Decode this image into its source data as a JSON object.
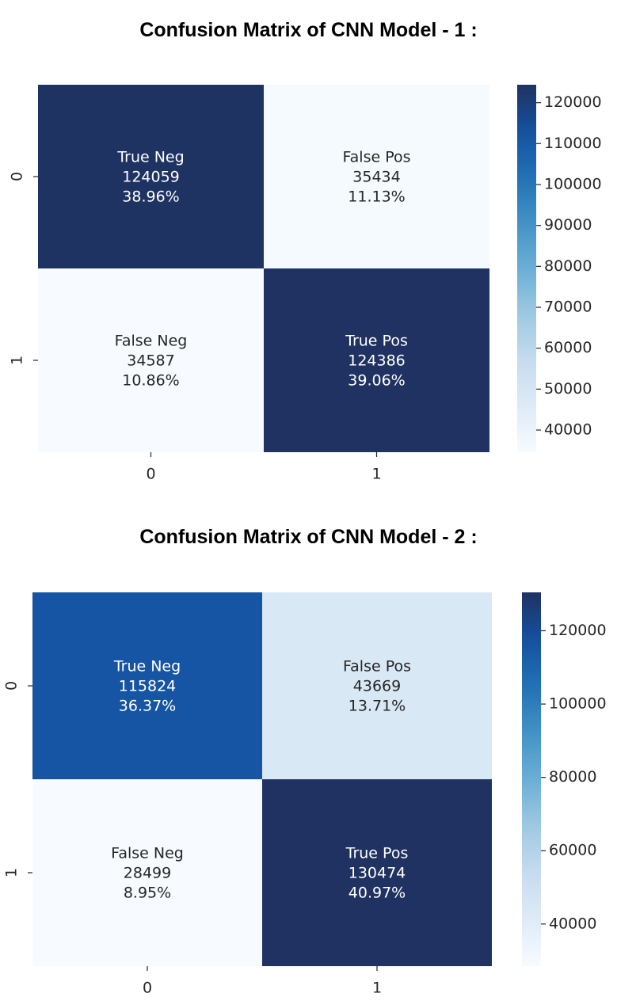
{
  "chart_data": [
    {
      "type": "heatmap",
      "title": "Confusion Matrix of CNN Model - 1 :",
      "row_labels": [
        "0",
        "1"
      ],
      "col_labels": [
        "0",
        "1"
      ],
      "cells": [
        [
          {
            "label": "True Neg",
            "count": "124059",
            "percent": "38.96%",
            "value": 124059
          },
          {
            "label": "False Pos",
            "count": "35434",
            "percent": "11.13%",
            "value": 35434
          }
        ],
        [
          {
            "label": "False Neg",
            "count": "34587",
            "percent": "10.86%",
            "value": 34587
          },
          {
            "label": "True Pos",
            "count": "124386",
            "percent": "39.06%",
            "value": 124386
          }
        ]
      ],
      "colorbar": {
        "min": 34587,
        "max": 124386,
        "ticks": [
          120000,
          110000,
          100000,
          90000,
          80000,
          70000,
          60000,
          50000,
          40000
        ]
      },
      "colormap": "Blues"
    },
    {
      "type": "heatmap",
      "title": "Confusion Matrix of CNN Model - 2 :",
      "row_labels": [
        "0",
        "1"
      ],
      "col_labels": [
        "0",
        "1"
      ],
      "cells": [
        [
          {
            "label": "True Neg",
            "count": "115824",
            "percent": "36.37%",
            "value": 115824
          },
          {
            "label": "False Pos",
            "count": "43669",
            "percent": "13.71%",
            "value": 43669
          }
        ],
        [
          {
            "label": "False Neg",
            "count": "28499",
            "percent": "8.95%",
            "value": 28499
          },
          {
            "label": "True Pos",
            "count": "130474",
            "percent": "40.97%",
            "value": 130474
          }
        ]
      ],
      "colorbar": {
        "min": 28499,
        "max": 130474,
        "ticks": [
          120000,
          100000,
          80000,
          60000,
          40000
        ]
      },
      "colormap": "Blues"
    }
  ]
}
